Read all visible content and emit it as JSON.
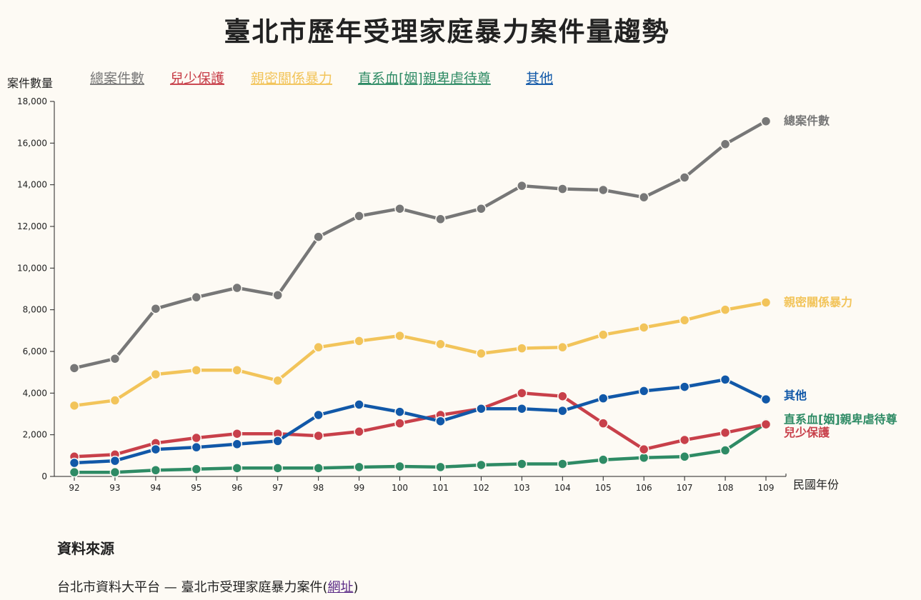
{
  "title": "臺北市歷年受理家庭暴力案件量趨勢",
  "source": {
    "heading": "資料來源",
    "text": "台北市資料大平台 — 臺北市受理家庭暴力案件(",
    "link_label": "網址",
    "suffix": ")"
  },
  "chart_data": {
    "type": "line",
    "title": "臺北市歷年受理家庭暴力案件量趨勢",
    "xlabel": "民國年份",
    "ylabel": "案件數量",
    "ylim": [
      0,
      18000
    ],
    "yticks": [
      "0",
      "2,000",
      "4,000",
      "6,000",
      "8,000",
      "10,000",
      "12,000",
      "14,000",
      "16,000",
      "18,000"
    ],
    "ytick_values": [
      0,
      2000,
      4000,
      6000,
      8000,
      10000,
      12000,
      14000,
      16000,
      18000
    ],
    "categories": [
      "92",
      "93",
      "94",
      "95",
      "96",
      "97",
      "98",
      "99",
      "100",
      "101",
      "102",
      "103",
      "104",
      "105",
      "106",
      "107",
      "108",
      "109"
    ],
    "legend_placement": "top",
    "grid": false,
    "series": [
      {
        "name": "總案件數",
        "color": "#777777",
        "values": [
          5200,
          5650,
          8050,
          8600,
          9050,
          8700,
          11500,
          12500,
          12850,
          12350,
          12850,
          13950,
          13800,
          13750,
          13400,
          14350,
          15950,
          17050
        ]
      },
      {
        "name": "兒少保護",
        "color": "#c8404a",
        "values": [
          950,
          1050,
          1600,
          1850,
          2050,
          2050,
          1950,
          2150,
          2550,
          2950,
          3250,
          4000,
          3850,
          2550,
          1300,
          1750,
          2100,
          2500
        ]
      },
      {
        "name": "親密關係暴力",
        "color": "#f2c45a",
        "values": [
          3400,
          3650,
          4900,
          5100,
          5100,
          4600,
          6200,
          6500,
          6750,
          6350,
          5900,
          6150,
          6200,
          6800,
          7150,
          7500,
          8000,
          8350
        ]
      },
      {
        "name": "直系血[姻]親卑虐待尊",
        "color": "#2e8b65",
        "values": [
          200,
          200,
          300,
          350,
          400,
          400,
          400,
          450,
          480,
          450,
          550,
          600,
          600,
          800,
          900,
          950,
          1250,
          2550
        ]
      },
      {
        "name": "其他",
        "color": "#1158a8",
        "values": [
          650,
          750,
          1300,
          1400,
          1550,
          1700,
          2950,
          3450,
          3100,
          2650,
          3250,
          3250,
          3150,
          3750,
          4100,
          4300,
          4650,
          3700
        ]
      }
    ]
  }
}
